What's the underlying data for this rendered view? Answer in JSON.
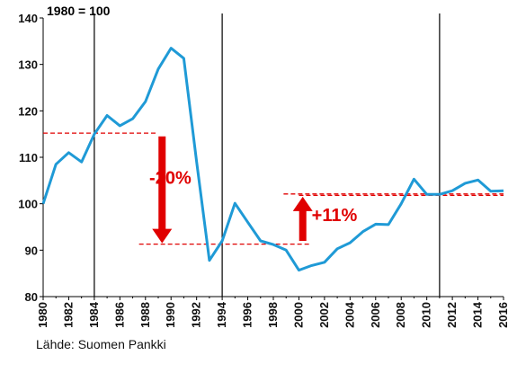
{
  "chart_data": {
    "type": "line",
    "title": "",
    "index_note": "1980 = 100",
    "xlabel": "",
    "ylabel": "",
    "xlim": [
      1980,
      2016
    ],
    "ylim": [
      80,
      140
    ],
    "x_ticks": [
      "1980",
      "1982",
      "1984",
      "1986",
      "1988",
      "1990",
      "1992",
      "1994",
      "1996",
      "1998",
      "2000",
      "2002",
      "2004",
      "2006",
      "2008",
      "2010",
      "2012",
      "2014",
      "2016"
    ],
    "y_ticks": [
      "80",
      "90",
      "100",
      "110",
      "120",
      "130",
      "140"
    ],
    "grid": false,
    "series": [
      {
        "color": "#1f9ad6",
        "x": [
          1980,
          1981,
          1982,
          1983,
          1984,
          1985,
          1986,
          1987,
          1988,
          1989,
          1990,
          1991,
          1992,
          1993,
          1994,
          1995,
          1996,
          1997,
          1998,
          1999,
          2000,
          2001,
          2002,
          2003,
          2004,
          2005,
          2006,
          2007,
          2008,
          2009,
          2010,
          2011,
          2012,
          2013,
          2014,
          2015,
          2016
        ],
        "y": [
          100,
          108.5,
          111,
          109,
          115,
          119,
          116.8,
          118.3,
          122,
          129,
          133.5,
          131.3,
          109,
          87.8,
          92,
          100.1,
          96,
          92,
          91.2,
          90,
          85.7,
          86.7,
          87.4,
          90.3,
          91.6,
          94,
          95.6,
          95.5,
          100,
          105.3,
          102,
          102,
          102.8,
          104.4,
          105.1,
          102.7,
          102.8
        ]
      }
    ],
    "vertical_markers": [
      1984,
      1994,
      2011
    ],
    "reference_lines": [
      {
        "x": [
          1980,
          1989
        ],
        "y": 115.2,
        "style": "dashed",
        "color": "#e00000"
      },
      {
        "x": [
          1987.5,
          2001
        ],
        "y": 91.3,
        "style": "dashed",
        "color": "#e00000"
      },
      {
        "x": [
          1998.8,
          2016
        ],
        "y": 102.1,
        "style": "dashed",
        "color": "#e00000"
      },
      {
        "x": [
          2000,
          2016
        ],
        "y": 101.8,
        "style": "dashed",
        "color": "#e00000"
      }
    ],
    "annotations": [
      {
        "text": "-20%",
        "x": 1988.3,
        "y": 104.3,
        "color": "#e00000"
      },
      {
        "text": "+11%",
        "x": 2001,
        "y": 96.3,
        "color": "#e00000"
      }
    ],
    "arrows": [
      {
        "direction": "down",
        "x": 1989.3,
        "y_from": 114.5,
        "y_to": 91.5,
        "color": "#e00000"
      },
      {
        "direction": "up",
        "x": 2000.3,
        "y_from": 92,
        "y_to": 101.5,
        "color": "#e00000"
      }
    ],
    "source_text": "Lähde: Suomen Pankki"
  }
}
